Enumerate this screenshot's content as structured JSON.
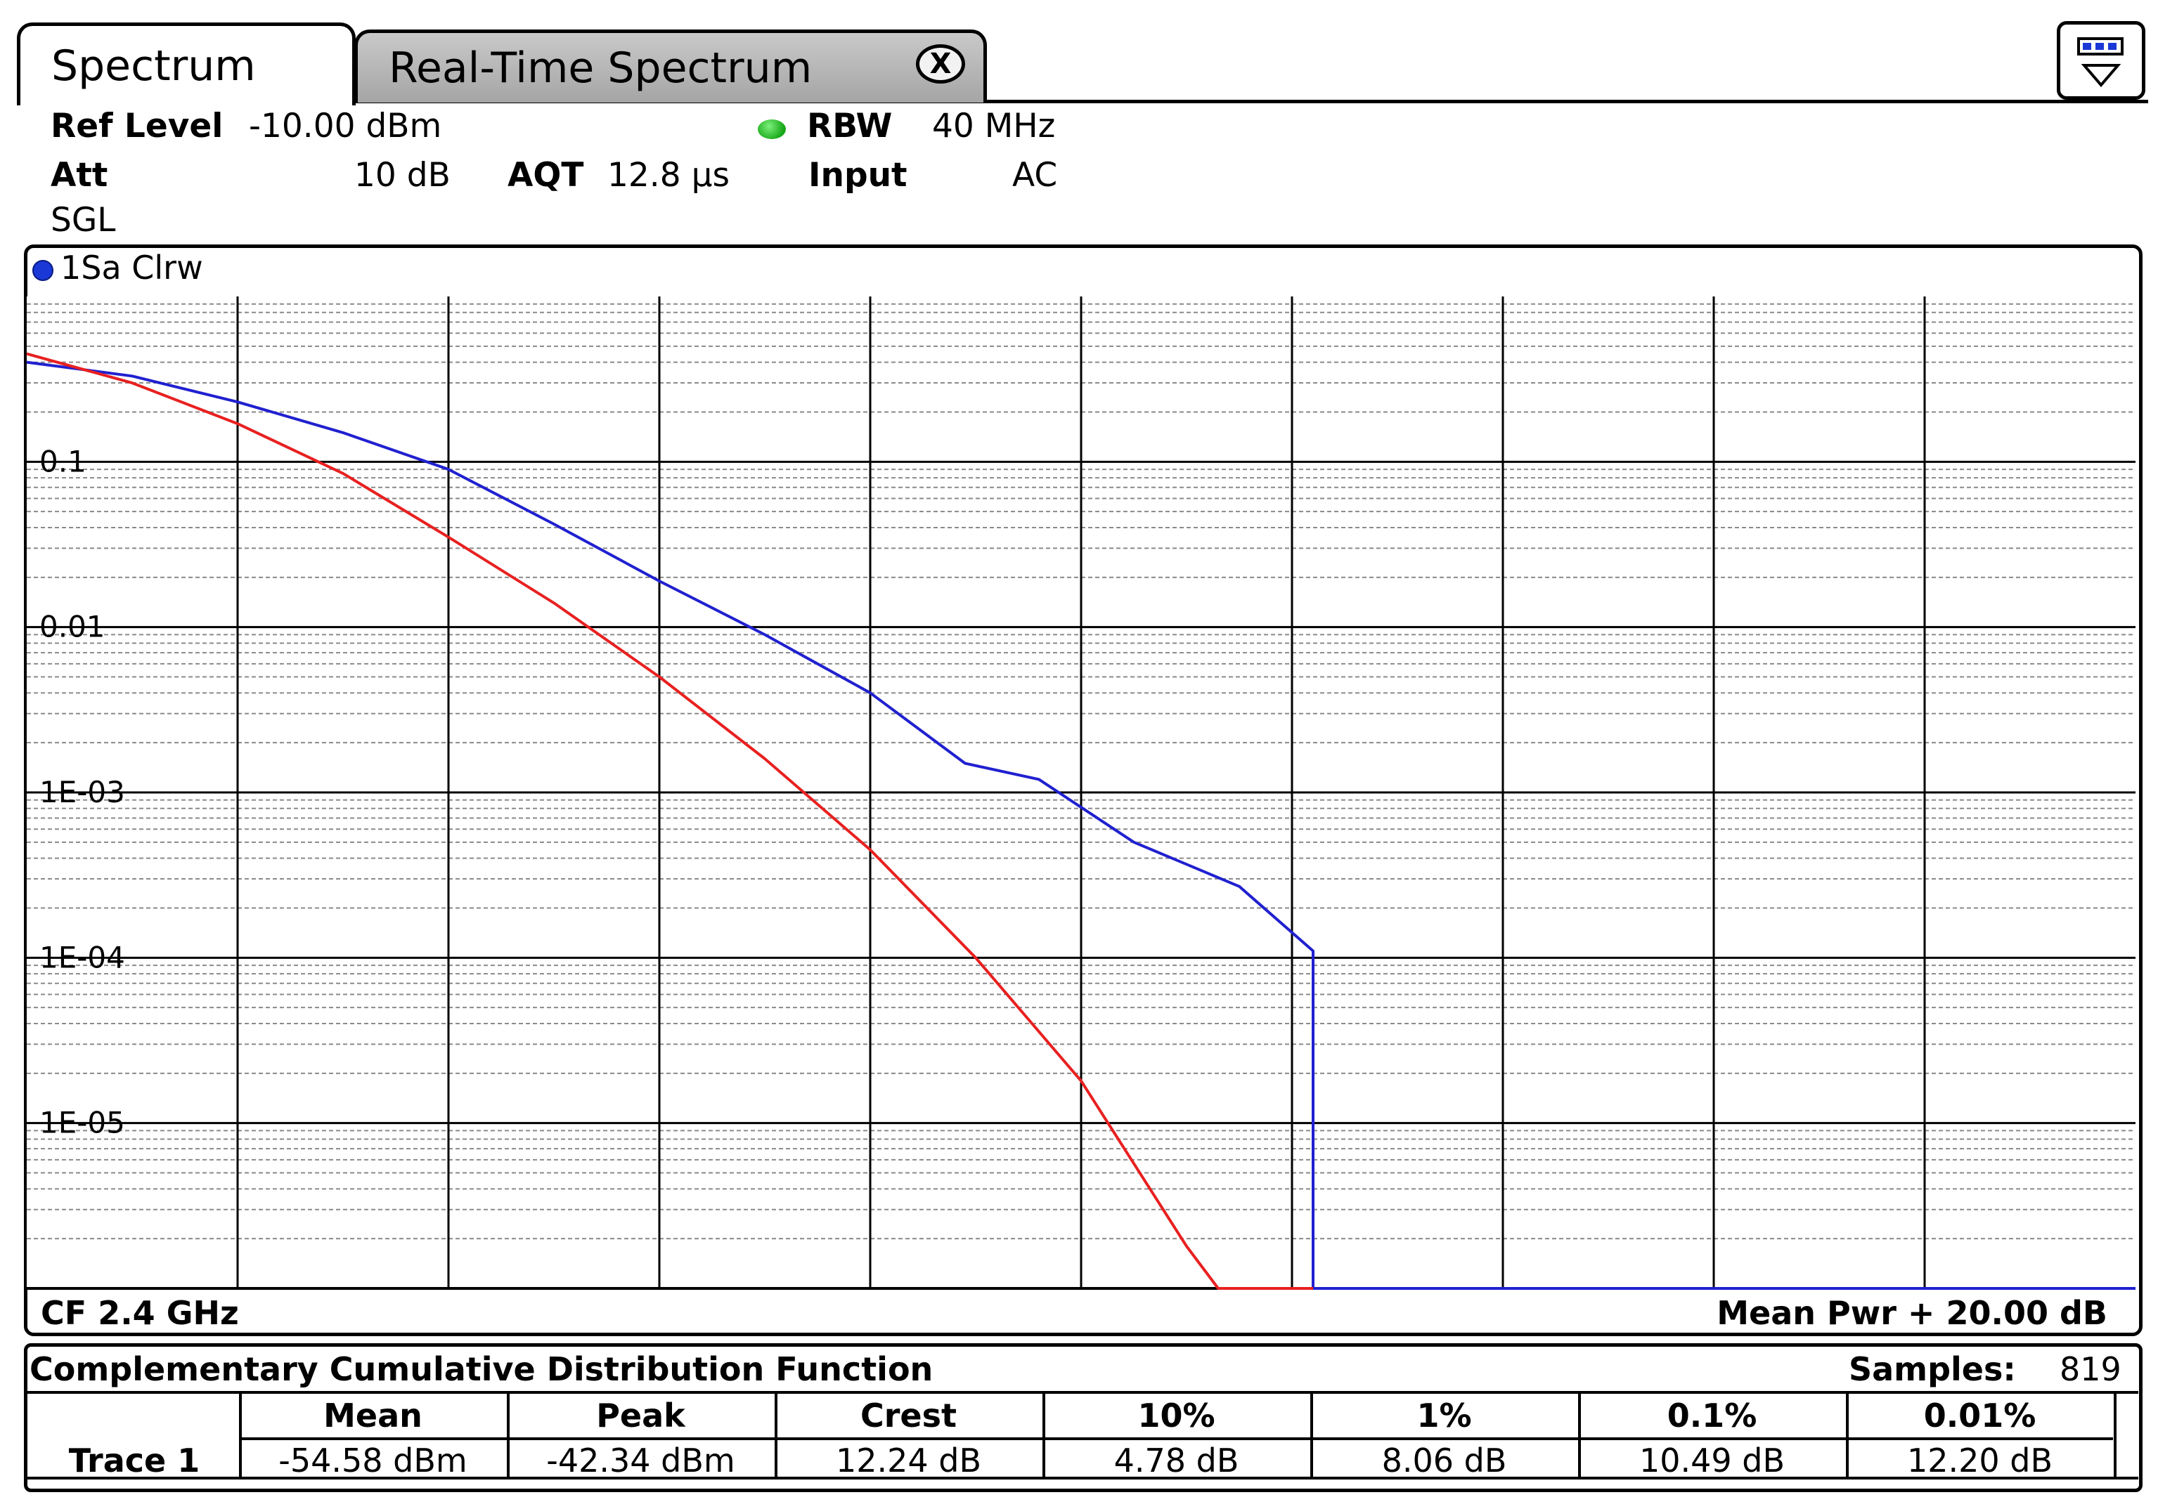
{
  "tabs": [
    {
      "label": "Spectrum",
      "active": true
    },
    {
      "label": "Real-Time Spectrum",
      "active": false,
      "close_glyph": "X"
    }
  ],
  "menu_icon": "window-layout-icon",
  "header": {
    "ref_level_label": "Ref Level",
    "ref_level_value": "-10.00 dBm",
    "att_label": "Att",
    "att_value": "10 dB",
    "aqt_label": "AQT",
    "aqt_value": "12.8 µs",
    "rbw_label": "RBW",
    "rbw_value": "40 MHz",
    "input_label": "Input",
    "input_value": "AC",
    "mode": "SGL",
    "status_color": "#22b822"
  },
  "trace_label": "1Sa Clrw",
  "footer": {
    "center_freq": "CF 2.4 GHz",
    "span": "Mean Pwr + 20.00 dB"
  },
  "chart_data": {
    "type": "line",
    "title": "",
    "y_scale": "log",
    "ylim": [
      1e-06,
      1
    ],
    "xlim": [
      0,
      20
    ],
    "x_unit": "dB above mean power",
    "y_tick_labels": [
      "0.1",
      "0.01",
      "1E-03",
      "1E-04",
      "1E-05"
    ],
    "grid": true,
    "series": [
      {
        "color": "#2020d0",
        "x": [
          0,
          1,
          2,
          3,
          4,
          5,
          6,
          7,
          8,
          8.9,
          9.6,
          10.5,
          11.5,
          12.2,
          12.2,
          20
        ],
        "y": [
          0.4,
          0.33,
          0.23,
          0.15,
          0.09,
          0.042,
          0.019,
          0.009,
          0.004,
          0.0015,
          0.0012,
          0.0005,
          0.00027,
          0.00011,
          1e-06,
          1e-06
        ]
      },
      {
        "color": "#e82020",
        "x": [
          0,
          1,
          2,
          3,
          4,
          5,
          6,
          7,
          8,
          9,
          10,
          11,
          11.3,
          12.2
        ],
        "y": [
          0.45,
          0.3,
          0.17,
          0.085,
          0.035,
          0.014,
          0.005,
          0.0016,
          0.00045,
          0.0001,
          1.8e-05,
          1.8e-06,
          1e-06,
          1e-06
        ]
      }
    ]
  },
  "ccdf_table": {
    "title": "Complementary Cumulative Distribution Function",
    "samples_label": "Samples:",
    "samples_value": "819",
    "columns": [
      "Mean",
      "Peak",
      "Crest",
      "10%",
      "1%",
      "0.1%",
      "0.01%"
    ],
    "row_label": "Trace 1",
    "values": [
      "-54.58 dBm",
      "-42.34 dBm",
      "12.24 dB",
      "4.78 dB",
      "8.06 dB",
      "10.49 dB",
      "12.20 dB"
    ]
  }
}
